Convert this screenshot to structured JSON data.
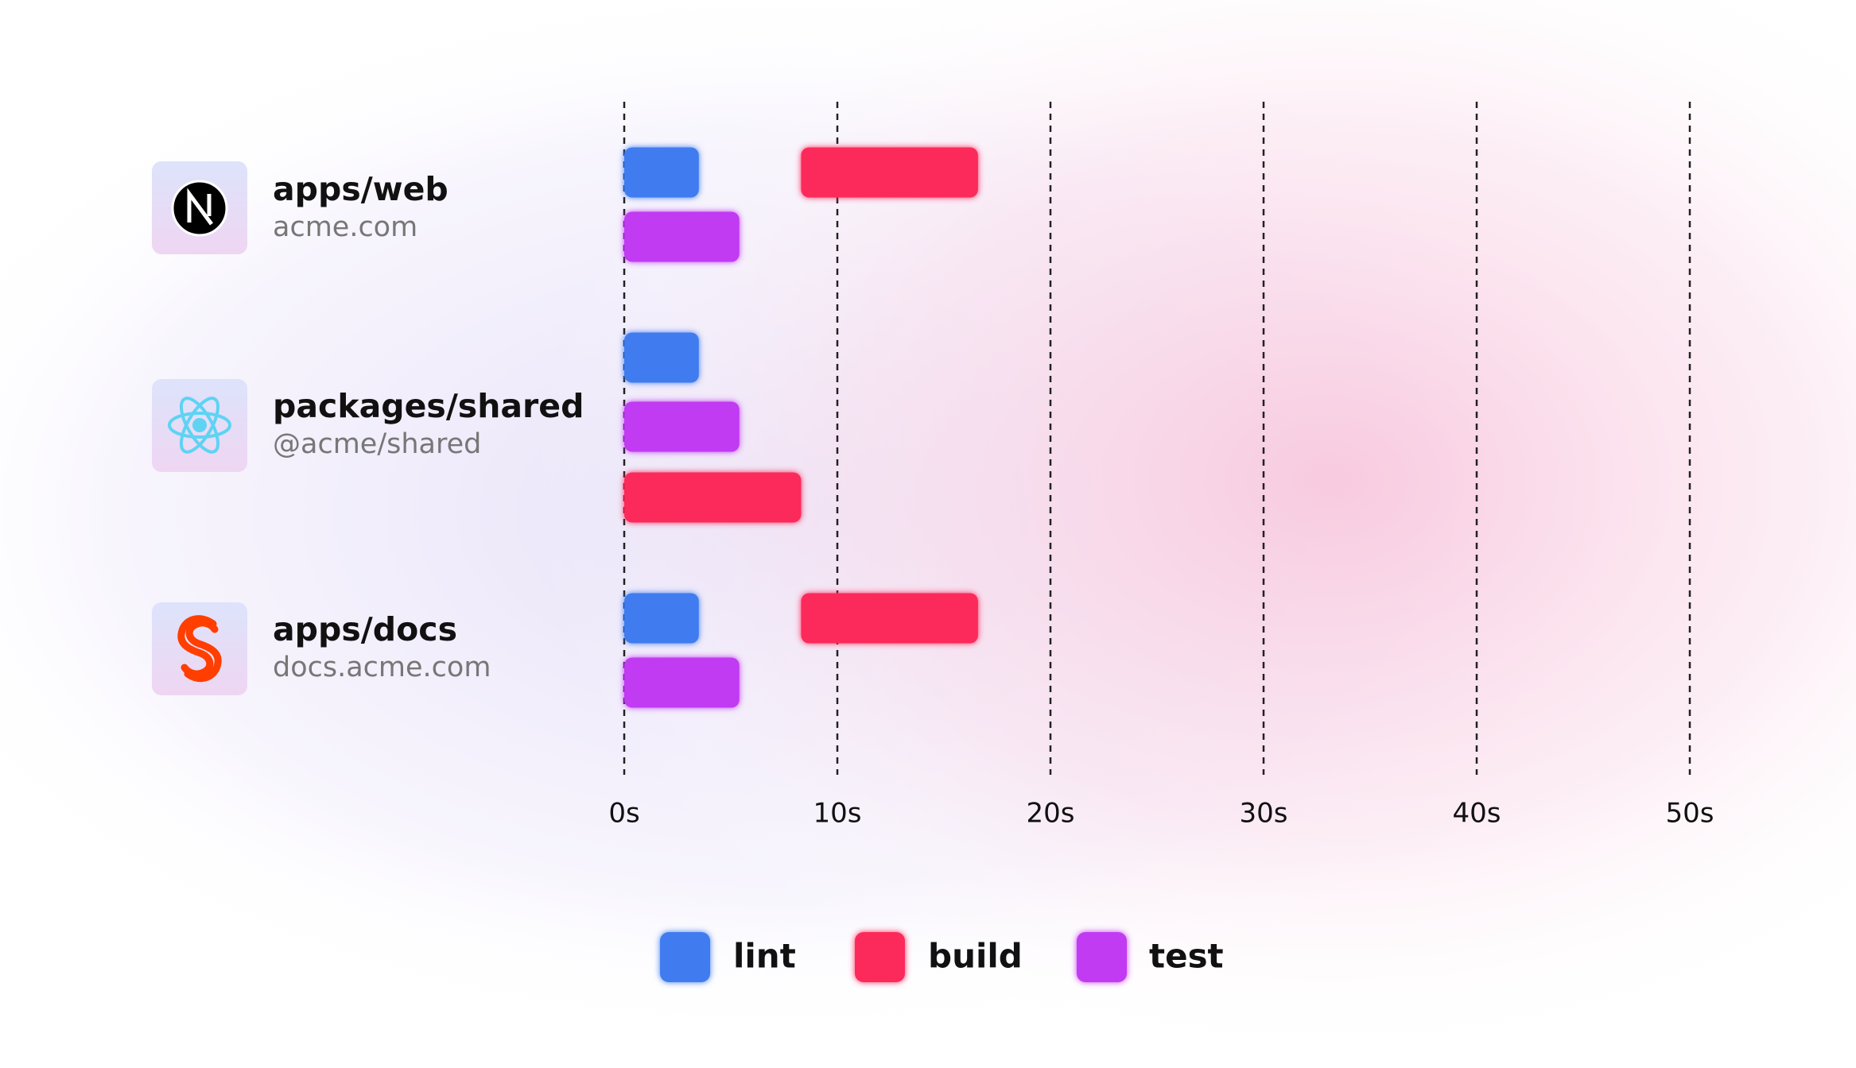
{
  "chart_data": {
    "type": "gantt",
    "categories": [
      "apps/web",
      "packages/shared",
      "apps/docs"
    ],
    "subtitles": [
      "acme.com",
      "@acme/shared",
      "docs.acme.com"
    ],
    "series": [
      {
        "name": "lint",
        "color": "#3f7cf0",
        "start": [
          0,
          0,
          0
        ],
        "end": [
          3.5,
          3.5,
          3.5
        ]
      },
      {
        "name": "build",
        "color": "#fb2c5a",
        "start": [
          8.3,
          0,
          8.3
        ],
        "end": [
          16.6,
          8.3,
          16.6
        ]
      },
      {
        "name": "test",
        "color": "#c03af2",
        "start": [
          0,
          0,
          0
        ],
        "end": [
          5.4,
          5.4,
          5.4
        ]
      }
    ],
    "xlim": [
      0,
      50
    ],
    "xticks": [
      {
        "value": 0,
        "label": "0s"
      },
      {
        "value": 10,
        "label": "10s"
      },
      {
        "value": 20,
        "label": "20s"
      },
      {
        "value": 30,
        "label": "30s"
      },
      {
        "value": 40,
        "label": "40s"
      },
      {
        "value": 50,
        "label": "50s"
      }
    ],
    "grid": true
  }
}
